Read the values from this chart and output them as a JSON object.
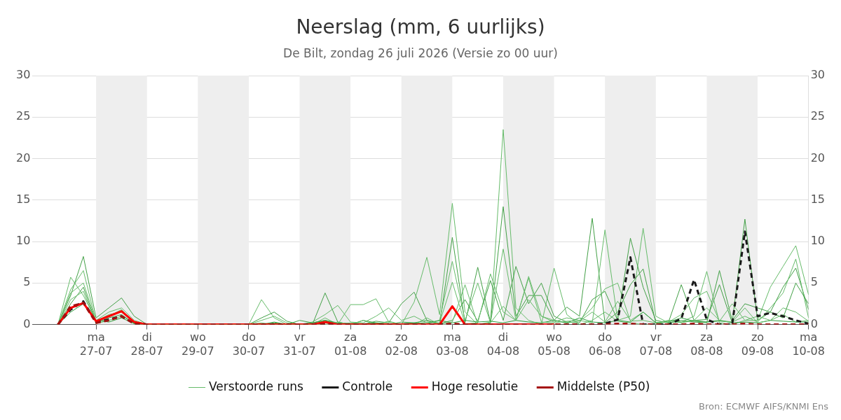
{
  "chart_data": {
    "type": "line",
    "title": "Neerslag (mm, 6 uurlijks)",
    "subtitle": "De Bilt, zondag 26 juli 2026 (Versie zo 00 uur)",
    "annotations": [
      "Bron: ECMWF AIFS/KNMI Ens"
    ],
    "x": [
      "2026-07-26T06:00",
      "2026-07-26T12:00",
      "2026-07-26T18:00",
      "2026-07-27T00:00",
      "2026-07-27T06:00",
      "2026-07-27T12:00",
      "2026-07-27T18:00",
      "2026-07-28T00:00",
      "2026-07-28T06:00",
      "2026-07-28T12:00",
      "2026-07-28T18:00",
      "2026-07-29T00:00",
      "2026-07-29T06:00",
      "2026-07-29T12:00",
      "2026-07-29T18:00",
      "2026-07-30T00:00",
      "2026-07-30T06:00",
      "2026-07-30T12:00",
      "2026-07-30T18:00",
      "2026-07-31T00:00",
      "2026-07-31T06:00",
      "2026-07-31T12:00",
      "2026-07-31T18:00",
      "2026-08-01T00:00",
      "2026-08-01T06:00",
      "2026-08-01T12:00",
      "2026-08-01T18:00",
      "2026-08-02T00:00",
      "2026-08-02T06:00",
      "2026-08-02T12:00",
      "2026-08-02T18:00",
      "2026-08-03T00:00",
      "2026-08-03T06:00",
      "2026-08-03T12:00",
      "2026-08-03T18:00",
      "2026-08-04T00:00",
      "2026-08-04T06:00",
      "2026-08-04T12:00",
      "2026-08-04T18:00",
      "2026-08-05T00:00",
      "2026-08-05T06:00",
      "2026-08-05T12:00",
      "2026-08-05T18:00",
      "2026-08-06T00:00",
      "2026-08-06T06:00",
      "2026-08-06T12:00",
      "2026-08-06T18:00",
      "2026-08-07T00:00",
      "2026-08-07T06:00",
      "2026-08-07T12:00",
      "2026-08-07T18:00",
      "2026-08-08T00:00",
      "2026-08-08T06:00",
      "2026-08-08T12:00",
      "2026-08-08T18:00",
      "2026-08-09T00:00",
      "2026-08-09T06:00",
      "2026-08-09T12:00",
      "2026-08-09T18:00",
      "2026-08-10T00:00"
    ],
    "series": [
      {
        "name": "Verstoorde runs",
        "color": "#66bb6a",
        "values": [
          0,
          5.7,
          3.5,
          0.5,
          1.5,
          2.0,
          0.5,
          0,
          0,
          0,
          0,
          0,
          0,
          0,
          0,
          0,
          3.0,
          0.8,
          0,
          0,
          0,
          0.5,
          0,
          2.4,
          2.4,
          3.1,
          0.3,
          0,
          2.7,
          8.1,
          1.2,
          14.6,
          1.5,
          0,
          0.3,
          23.5,
          2.0,
          0.5,
          0,
          6.8,
          1.2,
          0,
          0.5,
          1.5,
          0.4,
          0.2,
          0,
          0,
          0.5,
          0.3,
          1.0,
          6.4,
          0.2,
          0,
          0.5,
          0.5,
          4.5,
          7.0,
          9.5,
          3.6
        ]
      },
      {
        "color": "#43a047",
        "values": [
          0,
          3.5,
          8.2,
          0.8,
          2.0,
          3.2,
          1.0,
          0,
          0,
          0,
          0,
          0,
          0,
          0,
          0,
          0,
          0.8,
          1.5,
          0.4,
          0,
          0,
          3.8,
          0.3,
          0,
          0,
          0.4,
          0.2,
          2.5,
          3.9,
          0.5,
          0,
          10.5,
          0.2,
          6.9,
          0.3,
          14.2,
          1.0,
          3.5,
          3.5,
          0.5,
          2.1,
          1.0,
          12.8,
          0.2,
          1.5,
          4.8,
          6.7,
          0.2,
          0.3,
          4.8,
          0.5,
          0.6,
          4.8,
          0.2,
          12.7,
          0.5,
          1.5,
          4.5,
          6.8,
          1.8
        ]
      },
      {
        "color": "#66bb6a",
        "values": [
          0,
          4.2,
          6.5,
          0.3,
          1.0,
          1.8,
          0.2,
          0,
          0,
          0,
          0,
          0,
          0,
          0,
          0,
          0,
          0.5,
          1.0,
          0.2,
          0,
          0.3,
          1.2,
          2.3,
          0.3,
          0.2,
          1.0,
          2.0,
          0.5,
          1.0,
          0.2,
          0.5,
          7.6,
          0.5,
          5.0,
          0.2,
          9.1,
          0.5,
          5.8,
          1.0,
          0.3,
          0.8,
          0.5,
          0.2,
          11.4,
          0.5,
          1.0,
          11.6,
          1.0,
          0.2,
          0.3,
          0.5,
          2.0,
          0.5,
          0.3,
          1.0,
          0.3,
          2.0,
          3.8,
          7.9,
          0.8
        ]
      },
      {
        "color": "#43a047",
        "values": [
          0,
          2.5,
          4.5,
          0.2,
          0.8,
          1.2,
          0.1,
          0,
          0,
          0,
          0,
          0,
          0,
          0,
          0,
          0,
          0,
          0.3,
          0,
          0.5,
          0.2,
          0.5,
          0.1,
          0,
          0.5,
          0.2,
          0,
          0.3,
          0.2,
          0.5,
          0.1,
          0.5,
          3.0,
          0.4,
          5.3,
          0.5,
          7.0,
          2.5,
          5.0,
          1.0,
          0.3,
          0.2,
          3.0,
          4.0,
          0.5,
          10.4,
          4.5,
          0.5,
          0.2,
          0.5,
          0.3,
          0.2,
          6.5,
          0.5,
          2.5,
          2.0,
          1.5,
          0.8,
          5.0,
          2.5
        ]
      },
      {
        "color": "#66bb6a",
        "values": [
          0,
          3.0,
          4.0,
          0.1,
          0.5,
          1.0,
          0.2,
          0,
          0,
          0,
          0,
          0,
          0,
          0,
          0,
          0,
          0.2,
          0,
          0,
          0,
          0,
          0.8,
          0,
          0.2,
          0.1,
          0,
          0.4,
          0,
          0,
          0.3,
          0.2,
          5.1,
          0.1,
          0.2,
          6.1,
          1.5,
          0.5,
          3.0,
          1.0,
          0.5,
          0.2,
          0.4,
          1.5,
          0.3,
          2.8,
          0.5,
          1.5,
          0.2,
          0.5,
          0.2,
          0.5,
          0.3,
          0.4,
          2.5,
          0.5,
          1.0,
          0.5,
          1.2,
          0.3,
          0.5
        ]
      },
      {
        "color": "#2e9e3e",
        "values": [
          0,
          1.5,
          2.5,
          0.5,
          0.3,
          0.8,
          0.1,
          0,
          0,
          0,
          0,
          0,
          0,
          0,
          0,
          0,
          0,
          0.2,
          0,
          0,
          0.2,
          0.5,
          0.2,
          0.1,
          0.1,
          0.2,
          0.1,
          0.1,
          0.2,
          0.1,
          0.5,
          0.2,
          0.5,
          0.3,
          0.4,
          0.2,
          0.5,
          0.3,
          0.2,
          0.5,
          0.2,
          0.8,
          0.3,
          0.2,
          0.5,
          0.3,
          1.5,
          0.2,
          0.3,
          0.8,
          0.4,
          0.3,
          0.5,
          0.2,
          0.3,
          0.2,
          0.5,
          0.4,
          0.3,
          0.3
        ]
      },
      {
        "color": "#66bb6a",
        "values": [
          0,
          3.8,
          5.0,
          0.4,
          1.2,
          1.5,
          0.3,
          0,
          0,
          0,
          0,
          0,
          0,
          0,
          0,
          0,
          0,
          0,
          0,
          0,
          0,
          0,
          0.3,
          0,
          0.5,
          0,
          0,
          0,
          0,
          0.8,
          0,
          0.3,
          4.8,
          0,
          0.2,
          2.2,
          0.5,
          5.6,
          0.3,
          0.2,
          0.4,
          0.5,
          2.0,
          4.3,
          5.0,
          0.4,
          0.5,
          0.2,
          0.3,
          1.2,
          3.2,
          4.0,
          0.4,
          0.3,
          2.0,
          0.2,
          0.5,
          2.0,
          1.5,
          0.4
        ]
      },
      {
        "name": "Controle",
        "color": "#1a1a1a",
        "line_style": "dashed",
        "values": [
          0,
          1.8,
          2.8,
          0.3,
          0.6,
          1.0,
          0.1,
          0,
          0,
          0,
          0,
          0,
          0,
          0,
          0,
          0,
          0,
          0,
          0,
          0,
          0,
          0,
          0,
          0,
          0,
          0,
          0,
          0,
          0,
          0,
          0,
          0,
          0,
          0,
          0,
          0,
          0,
          0,
          0,
          0,
          0,
          0,
          0,
          0.1,
          0.6,
          8.1,
          0,
          0,
          0,
          0.7,
          5.4,
          0.6,
          0,
          0,
          11.2,
          1.0,
          1.4,
          1.0,
          0.5,
          0.1
        ]
      },
      {
        "name": "Hoge resolutie",
        "color": "#ff0000",
        "values": [
          0,
          2.0,
          2.6,
          0.4,
          1.0,
          1.6,
          0.3,
          0,
          0,
          0,
          0,
          0,
          0,
          0,
          0,
          0,
          0,
          0,
          0,
          0,
          0,
          0.3,
          0,
          0,
          0,
          0,
          0,
          0,
          0,
          0,
          0,
          2.2,
          0,
          0,
          0,
          0,
          0,
          0,
          0,
          0,
          null,
          null,
          null,
          null,
          null,
          null,
          null,
          null,
          null,
          null,
          null,
          null,
          null,
          null,
          null,
          null,
          null,
          null,
          null,
          null
        ]
      },
      {
        "name": "Middelste (P50)",
        "color": "#a50f0f",
        "line_style": "dashed",
        "values": [
          0,
          2.2,
          2.6,
          0.2,
          0.5,
          1.0,
          0.1,
          0,
          0,
          0,
          0,
          0,
          0,
          0,
          0,
          0,
          0,
          0,
          0,
          0,
          0,
          0.1,
          0,
          0,
          0,
          0,
          0,
          0,
          0,
          0,
          0,
          0.1,
          0,
          0,
          0,
          0,
          0,
          0,
          0,
          0,
          0,
          0,
          0,
          0,
          0.1,
          0.1,
          0,
          0,
          0,
          0,
          0.1,
          0,
          0,
          0,
          0.1,
          0,
          0,
          0,
          0,
          0
        ]
      }
    ],
    "xlim": [
      "2026-07-25T18:00",
      "2026-08-10T00:00"
    ],
    "xticks": [
      {
        "value": "2026-07-27",
        "label": "ma\n27-07"
      },
      {
        "value": "2026-07-28",
        "label": "di\n28-07"
      },
      {
        "value": "2026-07-29",
        "label": "wo\n29-07"
      },
      {
        "value": "2026-07-30",
        "label": "do\n30-07"
      },
      {
        "value": "2026-07-31",
        "label": "vr\n31-07"
      },
      {
        "value": "2026-08-01",
        "label": "za\n01-08"
      },
      {
        "value": "2026-08-02",
        "label": "zo\n02-08"
      },
      {
        "value": "2026-08-03",
        "label": "ma\n03-08"
      },
      {
        "value": "2026-08-04",
        "label": "di\n04-08"
      },
      {
        "value": "2026-08-05",
        "label": "wo\n05-08"
      },
      {
        "value": "2026-08-06",
        "label": "do\n06-08"
      },
      {
        "value": "2026-08-07",
        "label": "vr\n07-08"
      },
      {
        "value": "2026-08-08",
        "label": "za\n08-08"
      },
      {
        "value": "2026-08-09",
        "label": "zo\n09-08"
      },
      {
        "value": "2026-08-10",
        "label": "ma\n10-08"
      }
    ],
    "ylim": [
      0,
      30
    ],
    "yticks": [
      0,
      5,
      10,
      15,
      20,
      25,
      30
    ],
    "y2lim": [
      0,
      30
    ],
    "y2ticks": [
      0,
      5,
      10,
      15,
      20,
      25,
      30
    ],
    "bands": [
      {
        "axis": "x",
        "from": "2026-07-27",
        "to": "2026-07-28",
        "color": "#eeeeee"
      },
      {
        "axis": "x",
        "from": "2026-07-29",
        "to": "2026-07-30",
        "color": "#eeeeee"
      },
      {
        "axis": "x",
        "from": "2026-07-31",
        "to": "2026-08-01",
        "color": "#eeeeee"
      },
      {
        "axis": "x",
        "from": "2026-08-02",
        "to": "2026-08-03",
        "color": "#eeeeee"
      },
      {
        "axis": "x",
        "from": "2026-08-04",
        "to": "2026-08-05",
        "color": "#eeeeee"
      },
      {
        "axis": "x",
        "from": "2026-08-06",
        "to": "2026-08-07",
        "color": "#eeeeee"
      },
      {
        "axis": "x",
        "from": "2026-08-08",
        "to": "2026-08-09",
        "color": "#eeeeee"
      }
    ],
    "grid": "y",
    "legend": "bottom",
    "marker": "none"
  }
}
